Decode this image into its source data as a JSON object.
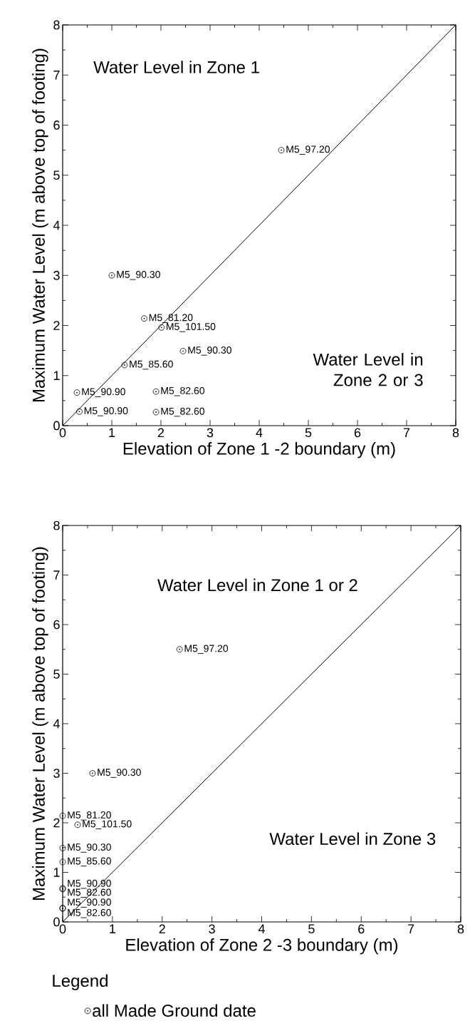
{
  "chart_data": [
    {
      "type": "scatter",
      "xlabel": "Elevation of Zone 1 -2 boundary (m)",
      "ylabel": "Maximum Water Level (m above top of footing)",
      "xlim": [
        0,
        8
      ],
      "ylim": [
        0,
        8
      ],
      "xticks": [
        0,
        1,
        2,
        3,
        4,
        5,
        6,
        7,
        8
      ],
      "yticks": [
        0,
        1,
        2,
        3,
        4,
        5,
        6,
        7,
        8
      ],
      "grid": false,
      "series": [
        {
          "marker": "circle",
          "color": "#000000",
          "x": [
            4.45,
            1.0,
            1.66,
            2.01,
            2.45,
            1.26,
            0.29,
            1.9,
            0.34,
            1.9
          ],
          "values": [
            5.5,
            3.0,
            2.14,
            1.96,
            1.49,
            1.21,
            0.66,
            0.68,
            0.28,
            0.27
          ]
        },
        {
          "type": "line",
          "color": "#000000",
          "x": [
            0,
            8
          ],
          "values": [
            0,
            8
          ]
        }
      ],
      "annotations": [
        "Water Level in Zone 1",
        "Water Level in Zone 2 or 3",
        {
          "text": "M5_97.20",
          "x": 4.45,
          "y": 5.5
        },
        {
          "text": "M5_90.30",
          "x": 1.0,
          "y": 3.0
        },
        {
          "text": "M5_81.20",
          "x": 1.66,
          "y": 2.14
        },
        {
          "text": "M5_101.50",
          "x": 2.01,
          "y": 1.96
        },
        {
          "text": "M5_90.30",
          "x": 2.45,
          "y": 1.49
        },
        {
          "text": "M5_85.60",
          "x": 1.26,
          "y": 1.21
        },
        {
          "text": "M5_90.90",
          "x": 0.29,
          "y": 0.66
        },
        {
          "text": "M5_82.60",
          "x": 1.9,
          "y": 0.68
        },
        {
          "text": "M5_90.90",
          "x": 0.34,
          "y": 0.28
        },
        {
          "text": "M5_82.60",
          "x": 1.9,
          "y": 0.27
        }
      ]
    },
    {
      "type": "scatter",
      "xlabel": "Elevation of Zone 2 -3 boundary (m)",
      "ylabel": "Maximum Water Level (m above top of footing)",
      "xlim": [
        0,
        8
      ],
      "ylim": [
        0,
        8
      ],
      "xticks": [
        0,
        1,
        2,
        3,
        4,
        5,
        6,
        7,
        8
      ],
      "yticks": [
        0,
        1,
        2,
        3,
        4,
        5,
        6,
        7,
        8
      ],
      "grid": false,
      "legend": "bottom",
      "legend_title": "Legend",
      "series": [
        {
          "marker": "circle",
          "name": "all Made Ground date",
          "color": "#000000",
          "x": [
            2.35,
            0.6,
            0,
            0.3,
            0,
            0,
            0,
            0,
            0,
            0
          ],
          "values": [
            5.5,
            3.0,
            2.14,
            1.96,
            1.49,
            1.21,
            0.66,
            0.68,
            0.28,
            0.27
          ]
        },
        {
          "type": "line",
          "color": "#000000",
          "x": [
            0,
            8
          ],
          "values": [
            0,
            8
          ]
        }
      ],
      "annotations": [
        "Water Level in Zone 1 or 2",
        "Water Level in Zone 3",
        {
          "text": "M5_97.20",
          "x": 2.35,
          "y": 5.5
        },
        {
          "text": "M5_90.30",
          "x": 0.6,
          "y": 3.0
        },
        {
          "text": "M5_81.20",
          "x": 0,
          "y": 2.14
        },
        {
          "text": "M5_101.50",
          "x": 0.3,
          "y": 1.96
        },
        {
          "text": "M5_90.30",
          "x": 0,
          "y": 1.49
        },
        {
          "text": "M5_85.60",
          "x": 0,
          "y": 1.21
        },
        {
          "text": "M5_90.90",
          "x": 0,
          "y": 0.66
        },
        {
          "text": "M5_82.60",
          "x": 0,
          "y": 0.68
        },
        {
          "text": "M5_90.90",
          "x": 0,
          "y": 0.28
        },
        {
          "text": "M5_82.60",
          "x": 0,
          "y": 0.27
        }
      ]
    }
  ]
}
